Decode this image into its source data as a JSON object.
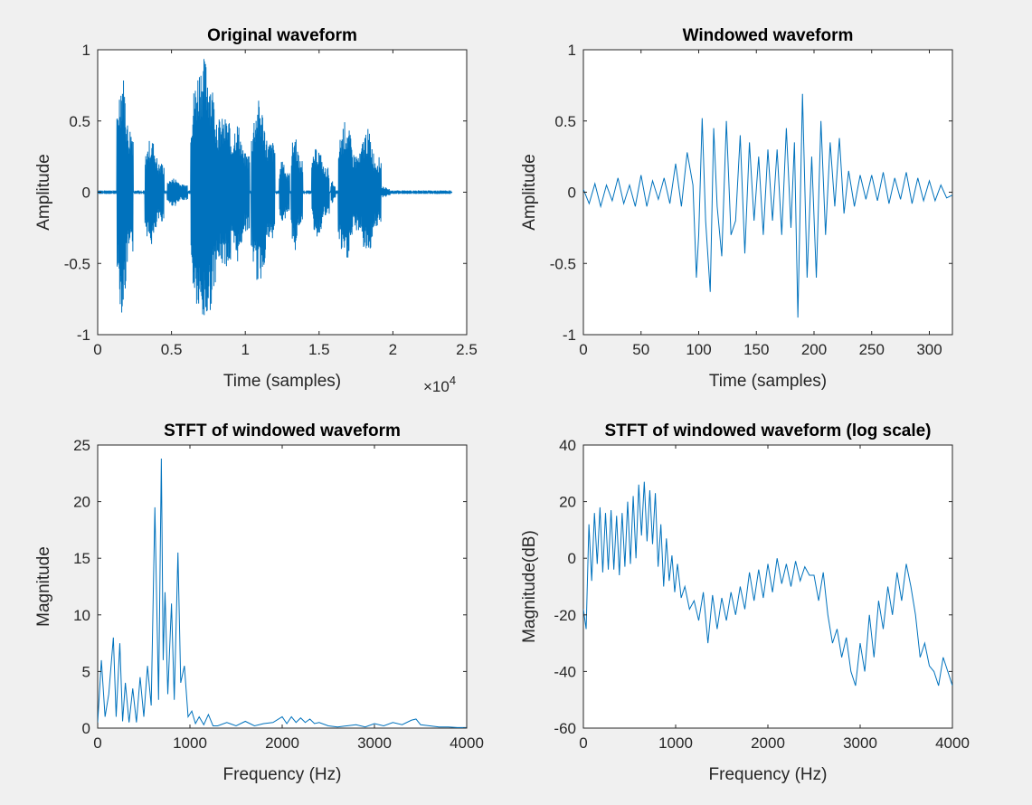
{
  "figure": {
    "background": "#f0f0f0",
    "line_color": "#0072bd"
  },
  "chart_data": [
    {
      "id": "p1",
      "type": "line",
      "title": "Original waveform",
      "xlabel": "Time (samples)",
      "ylabel": "Amplitude",
      "xlim": [
        0,
        25000
      ],
      "ylim": [
        -1,
        1
      ],
      "xticks": [
        0,
        5000,
        10000,
        15000,
        20000,
        25000
      ],
      "xtick_labels": [
        "0",
        "0.5",
        "1",
        "1.5",
        "2",
        "2.5"
      ],
      "yticks": [
        -1,
        -0.5,
        0,
        0.5,
        1
      ],
      "ytick_labels": [
        "-1",
        "-0.5",
        "0",
        "0.5",
        "1"
      ],
      "x_exponent": "×10^4",
      "exp_base": "×10",
      "exp_power": "4",
      "grid": false,
      "bursts": [
        {
          "start": 1300,
          "end": 2400,
          "amp": 0.85
        },
        {
          "start": 3200,
          "end": 4500,
          "amp": 0.38
        },
        {
          "start": 4700,
          "end": 6100,
          "amp": 0.1
        },
        {
          "start": 6300,
          "end": 9000,
          "amp": 0.95
        },
        {
          "start": 9000,
          "end": 10300,
          "amp": 0.5
        },
        {
          "start": 10400,
          "end": 12000,
          "amp": 0.65
        },
        {
          "start": 12300,
          "end": 13000,
          "amp": 0.25
        },
        {
          "start": 13100,
          "end": 13900,
          "amp": 0.42
        },
        {
          "start": 14500,
          "end": 15700,
          "amp": 0.32
        },
        {
          "start": 15800,
          "end": 16100,
          "amp": 0.08
        },
        {
          "start": 16300,
          "end": 17800,
          "amp": 0.5
        },
        {
          "start": 17800,
          "end": 19200,
          "amp": 0.45
        },
        {
          "start": 19200,
          "end": 19800,
          "amp": 0.04
        }
      ]
    },
    {
      "id": "p2",
      "type": "line",
      "title": "Windowed waveform",
      "xlabel": "Time (samples)",
      "ylabel": "Amplitude",
      "xlim": [
        0,
        320
      ],
      "ylim": [
        -1,
        1
      ],
      "xticks": [
        0,
        50,
        100,
        150,
        200,
        250,
        300
      ],
      "xtick_labels": [
        "0",
        "50",
        "100",
        "150",
        "200",
        "250",
        "300"
      ],
      "yticks": [
        -1,
        -0.5,
        0,
        0.5,
        1
      ],
      "ytick_labels": [
        "-1",
        "-0.5",
        "0",
        "0.5",
        "1"
      ],
      "grid": false,
      "x": [
        0,
        5,
        10,
        15,
        20,
        25,
        30,
        35,
        40,
        45,
        50,
        55,
        60,
        65,
        70,
        75,
        80,
        85,
        90,
        95,
        98,
        100,
        103,
        106,
        110,
        113,
        116,
        120,
        124,
        128,
        132,
        136,
        140,
        144,
        148,
        152,
        156,
        160,
        164,
        168,
        172,
        176,
        180,
        183,
        186,
        190,
        194,
        198,
        202,
        206,
        210,
        214,
        218,
        222,
        226,
        230,
        235,
        240,
        245,
        250,
        255,
        260,
        265,
        270,
        275,
        280,
        285,
        290,
        295,
        300,
        305,
        310,
        315,
        320
      ],
      "y": [
        0.02,
        -0.08,
        0.06,
        -0.1,
        0.05,
        -0.06,
        0.1,
        -0.08,
        0.05,
        -0.1,
        0.12,
        -0.1,
        0.08,
        -0.05,
        0.1,
        -0.08,
        0.2,
        -0.1,
        0.28,
        0.05,
        -0.6,
        -0.3,
        0.52,
        -0.2,
        -0.7,
        0.45,
        -0.1,
        -0.45,
        0.5,
        -0.3,
        -0.2,
        0.4,
        -0.43,
        0.35,
        -0.2,
        0.25,
        -0.3,
        0.3,
        -0.2,
        0.3,
        -0.3,
        0.45,
        -0.25,
        0.35,
        -0.88,
        0.69,
        -0.6,
        0.25,
        -0.6,
        0.5,
        -0.3,
        0.35,
        -0.1,
        0.38,
        -0.15,
        0.15,
        -0.1,
        0.12,
        -0.05,
        0.12,
        -0.06,
        0.14,
        -0.08,
        0.1,
        -0.05,
        0.14,
        -0.08,
        0.1,
        -0.06,
        0.08,
        -0.06,
        0.05,
        -0.04,
        -0.02
      ]
    },
    {
      "id": "p3",
      "type": "line",
      "title": "STFT of windowed waveform",
      "xlabel": "Frequency (Hz)",
      "ylabel": "Magnitude",
      "xlim": [
        0,
        4000
      ],
      "ylim": [
        0,
        25
      ],
      "xticks": [
        0,
        1000,
        2000,
        3000,
        4000
      ],
      "xtick_labels": [
        "0",
        "1000",
        "2000",
        "3000",
        "4000"
      ],
      "yticks": [
        0,
        5,
        10,
        15,
        20,
        25
      ],
      "ytick_labels": [
        "0",
        "5",
        "10",
        "15",
        "20",
        "25"
      ],
      "grid": false,
      "x": [
        0,
        40,
        80,
        120,
        170,
        200,
        240,
        270,
        300,
        340,
        380,
        420,
        460,
        500,
        540,
        580,
        620,
        660,
        690,
        710,
        730,
        760,
        800,
        830,
        870,
        900,
        940,
        980,
        1020,
        1060,
        1100,
        1150,
        1200,
        1250,
        1300,
        1400,
        1500,
        1600,
        1700,
        1800,
        1900,
        2000,
        2050,
        2100,
        2150,
        2200,
        2250,
        2300,
        2350,
        2400,
        2500,
        2600,
        2700,
        2800,
        2900,
        3000,
        3100,
        3200,
        3300,
        3400,
        3450,
        3500,
        3600,
        3700,
        3800,
        3900,
        4000
      ],
      "y": [
        0.5,
        6,
        1,
        3,
        8,
        1,
        7.5,
        0.6,
        4,
        0.5,
        3.5,
        0.5,
        4.5,
        1,
        5.5,
        2,
        19.5,
        2.5,
        23.8,
        6,
        12,
        3,
        11,
        2.5,
        15.5,
        4,
        5.5,
        1,
        1.5,
        0.4,
        1,
        0.3,
        1.2,
        0.2,
        0.2,
        0.5,
        0.2,
        0.6,
        0.2,
        0.4,
        0.5,
        1,
        0.4,
        1,
        0.5,
        0.9,
        0.5,
        0.8,
        0.4,
        0.5,
        0.2,
        0.1,
        0.2,
        0.3,
        0.1,
        0.4,
        0.2,
        0.5,
        0.3,
        0.7,
        0.8,
        0.3,
        0.2,
        0.1,
        0.1,
        0.05,
        0.05
      ]
    },
    {
      "id": "p4",
      "type": "line",
      "title": "STFT of windowed waveform (log scale)",
      "xlabel": "Frequency (Hz)",
      "ylabel": "Magnitude(dB)",
      "xlim": [
        0,
        4000
      ],
      "ylim": [
        -60,
        40
      ],
      "xticks": [
        0,
        1000,
        2000,
        3000,
        4000
      ],
      "xtick_labels": [
        "0",
        "1000",
        "2000",
        "3000",
        "4000"
      ],
      "yticks": [
        -60,
        -40,
        -20,
        0,
        20,
        40
      ],
      "ytick_labels": [
        "-60",
        "-40",
        "-20",
        "0",
        "20",
        "40"
      ],
      "grid": false,
      "x": [
        0,
        30,
        60,
        90,
        120,
        150,
        180,
        210,
        240,
        270,
        300,
        330,
        360,
        390,
        420,
        450,
        480,
        510,
        540,
        570,
        600,
        630,
        660,
        690,
        720,
        750,
        780,
        810,
        840,
        870,
        900,
        930,
        960,
        990,
        1020,
        1060,
        1100,
        1150,
        1200,
        1250,
        1300,
        1350,
        1400,
        1450,
        1500,
        1550,
        1600,
        1650,
        1700,
        1750,
        1800,
        1850,
        1900,
        1950,
        2000,
        2050,
        2100,
        2150,
        2200,
        2250,
        2300,
        2350,
        2400,
        2450,
        2500,
        2550,
        2600,
        2650,
        2700,
        2750,
        2800,
        2850,
        2900,
        2950,
        3000,
        3050,
        3100,
        3150,
        3200,
        3250,
        3300,
        3350,
        3400,
        3450,
        3500,
        3550,
        3600,
        3650,
        3700,
        3750,
        3800,
        3850,
        3900,
        3950,
        4000
      ],
      "y": [
        -18,
        -25,
        12,
        -8,
        16,
        -2,
        18,
        -5,
        16,
        -4,
        17,
        -4,
        15,
        -6,
        16,
        -3,
        20,
        -2,
        22,
        0,
        26,
        8,
        27,
        6,
        24,
        5,
        23,
        -3,
        12,
        -10,
        7,
        -8,
        1,
        -12,
        -2,
        -14,
        -10,
        -18,
        -15,
        -22,
        -12,
        -30,
        -13,
        -25,
        -14,
        -22,
        -12,
        -20,
        -10,
        -18,
        -5,
        -15,
        -4,
        -14,
        -2,
        -12,
        0,
        -9,
        -2,
        -10,
        -1,
        -8,
        -3,
        -6,
        -6,
        -15,
        -5,
        -20,
        -30,
        -25,
        -35,
        -28,
        -40,
        -45,
        -30,
        -40,
        -20,
        -35,
        -15,
        -25,
        -10,
        -20,
        -5,
        -15,
        -2,
        -10,
        -20,
        -35,
        -30,
        -38,
        -40,
        -45,
        -35,
        -40,
        -45
      ]
    }
  ]
}
